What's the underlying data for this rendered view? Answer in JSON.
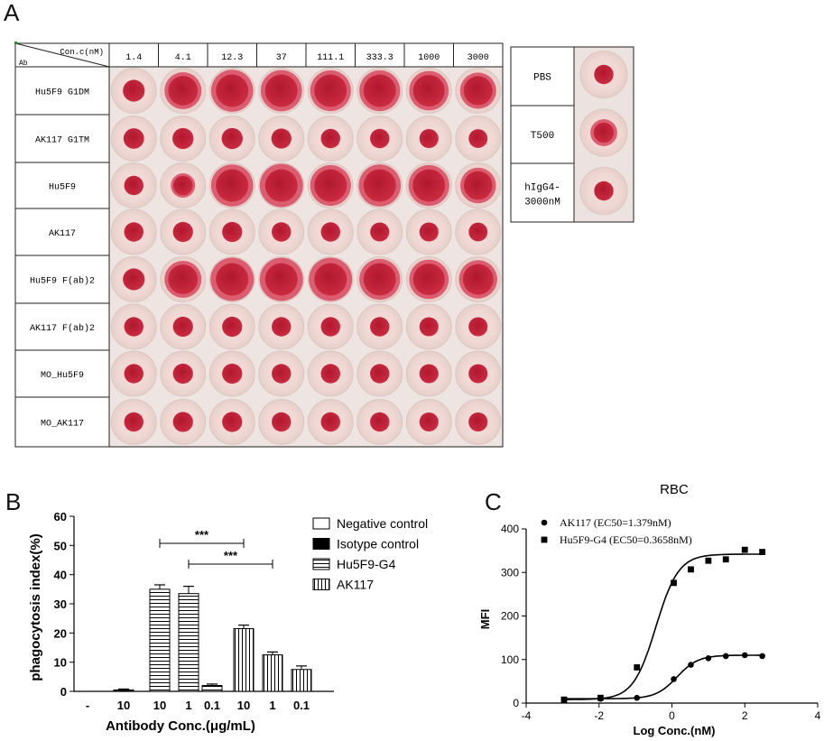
{
  "panels": {
    "a": "A",
    "b": "B",
    "c": "C"
  },
  "plate": {
    "corner_top": "Con.c(nM)",
    "corner_bottom": "Ab",
    "concentrations": [
      "1.4",
      "4.1",
      "12.3",
      "37",
      "111.1",
      "333.3",
      "1000",
      "3000"
    ],
    "rows": [
      "Hu5F9 G1DM",
      "AK117 G1TM",
      "Hu5F9",
      "AK117",
      "Hu5F9 F(ab)2",
      "AK117 F(ab)2",
      "MO_Hu5F9",
      "MO_AK117"
    ],
    "spread": [
      [
        0.15,
        0.75,
        0.95,
        0.92,
        0.9,
        0.9,
        0.85,
        0.72
      ],
      [
        0.1,
        0.12,
        0.12,
        0.08,
        0.05,
        0.05,
        0.04,
        0.03
      ],
      [
        0.05,
        0.25,
        0.95,
        1.0,
        0.9,
        0.95,
        0.9,
        0.7
      ],
      [
        0.05,
        0.08,
        0.08,
        0.05,
        0.05,
        0.04,
        0.04,
        0.03
      ],
      [
        0.15,
        0.75,
        1.0,
        1.0,
        1.0,
        0.9,
        0.85,
        0.8
      ],
      [
        0.05,
        0.08,
        0.08,
        0.05,
        0.05,
        0.05,
        0.04,
        0.04
      ],
      [
        0.05,
        0.08,
        0.08,
        0.05,
        0.05,
        0.05,
        0.04,
        0.04
      ],
      [
        0.05,
        0.08,
        0.08,
        0.05,
        0.05,
        0.05,
        0.04,
        0.04
      ]
    ],
    "controls": [
      {
        "label": "PBS",
        "spread": 0.05
      },
      {
        "label": "T500",
        "spread": 0.35
      },
      {
        "label": "hIgG4-3000nM",
        "label_line1": "hIgG4-",
        "label_line2": "3000nM",
        "spread": 0.05
      }
    ]
  },
  "chart_data": [
    {
      "type": "bar",
      "ylabel": "phagocytosis index(%)",
      "xlabel": "Antibody Conc.(μg/mL)",
      "ylim": [
        0,
        60
      ],
      "yticks": [
        "0",
        "10",
        "20",
        "30",
        "40",
        "50",
        "60"
      ],
      "categories": [
        "-",
        "10",
        "10",
        "1",
        "0.1",
        "10",
        "1",
        "0.1"
      ],
      "groups": [
        "Negative control",
        "Isotype control",
        "Hu5F9-G4",
        "Hu5F9-G4",
        "Hu5F9-G4",
        "AK117",
        "AK117",
        "AK117"
      ],
      "values": [
        0,
        0.5,
        35,
        33.5,
        2,
        21.5,
        12.5,
        7.5
      ],
      "errors": [
        0,
        0.3,
        1.5,
        2.5,
        0.5,
        1.2,
        1.0,
        1.2
      ],
      "legend": [
        "Negative control",
        "Isotype control",
        "Hu5F9-G4",
        "AK117"
      ],
      "legend_position": "top-right",
      "annotations": [
        {
          "text": "***",
          "from_bar": 2,
          "to_bar": 5
        },
        {
          "text": "***",
          "from_bar": 3,
          "to_bar": 6
        }
      ]
    },
    {
      "type": "scatter",
      "title": "RBC",
      "xlabel": "Log Conc.(nM)",
      "ylabel": "MFI",
      "xlim": [
        -4,
        4
      ],
      "ylim": [
        0,
        400
      ],
      "xticks": [
        "-4",
        "-2",
        "0",
        "2",
        "4"
      ],
      "yticks": [
        "0",
        "100",
        "200",
        "300",
        "400"
      ],
      "legend_position": "top-left",
      "series": [
        {
          "name": "AK117 (EC50=1.379nM)",
          "marker": "circle",
          "x": [
            -2.96,
            -1.96,
            -0.96,
            0.05,
            0.52,
            1.0,
            1.48,
            2.0,
            2.48
          ],
          "y": [
            7,
            10,
            12,
            55,
            88,
            103,
            108,
            110,
            108
          ],
          "fit": {
            "bottom": 10,
            "top": 110,
            "logEC50": 0.14,
            "hill": 1.5
          }
        },
        {
          "name": "Hu5F9-G4 (EC50=0.3658nM)",
          "marker": "square",
          "x": [
            -2.96,
            -1.96,
            -0.96,
            0.05,
            0.52,
            1.0,
            1.48,
            2.0,
            2.48
          ],
          "y": [
            8,
            12,
            82,
            276,
            307,
            327,
            330,
            352,
            347
          ],
          "fit": {
            "bottom": 8,
            "top": 342,
            "logEC50": -0.44,
            "hill": 1.4
          }
        }
      ]
    }
  ]
}
